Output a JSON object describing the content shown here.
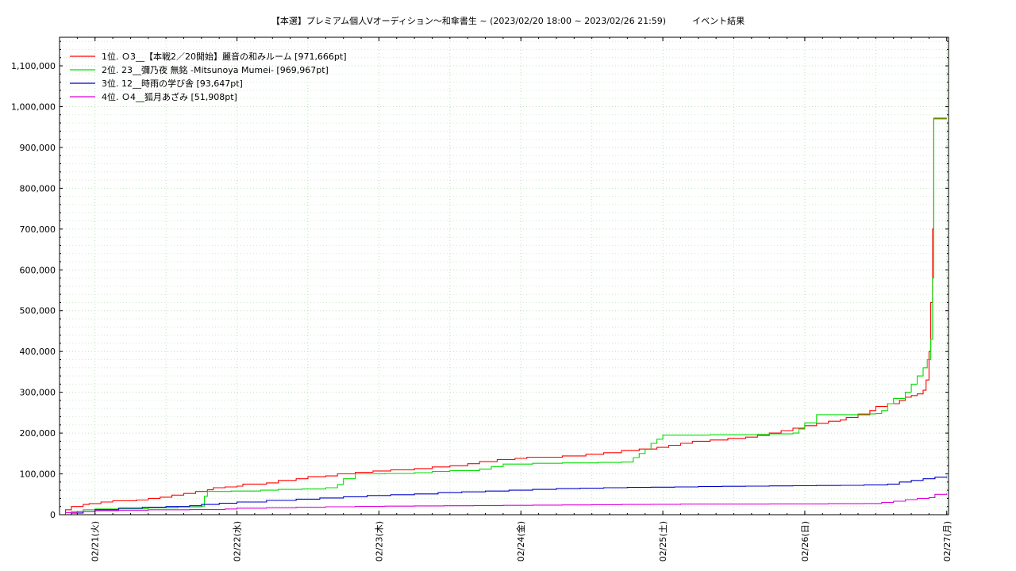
{
  "chart_data": {
    "type": "line",
    "title": "【本選】プレミアム個人Vオーディション〜和傘書生 ~ (2023/02/20 18:00 ~ 2023/02/26 21:59)　　　イベント結果",
    "xlabel": "",
    "ylabel": "",
    "x_ticks": [
      "02/21(火)",
      "02/22(水)",
      "02/23(木)",
      "02/24(金)",
      "02/25(土)",
      "02/26(日)",
      "02/27(月)"
    ],
    "x_tick_hours": [
      6,
      30,
      54,
      78,
      102,
      126,
      150
    ],
    "xlim_hours": [
      0,
      150.3
    ],
    "ylim": [
      0,
      1170000
    ],
    "y_ticks": [
      0,
      100000,
      200000,
      300000,
      400000,
      500000,
      600000,
      700000,
      800000,
      900000,
      1000000,
      1100000
    ],
    "y_tick_labels": [
      "0",
      "100,000",
      "200,000",
      "300,000",
      "400,000",
      "500,000",
      "600,000",
      "700,000",
      "800,000",
      "900,000",
      "1,000,000",
      "1,100,000"
    ],
    "grid": true,
    "legend_position": "top-left",
    "x_unit": "hours since 2023/02/20 18:00",
    "series": [
      {
        "name": "1位. Ｏ3__【本戦2／20開始】麗音の和みルーム [971,666pt]",
        "color": "#ff0000",
        "points": [
          [
            0,
            0
          ],
          [
            1,
            12000
          ],
          [
            2,
            20000
          ],
          [
            4,
            25000
          ],
          [
            5,
            27000
          ],
          [
            7,
            31000
          ],
          [
            9,
            34000
          ],
          [
            13,
            36000
          ],
          [
            15,
            40000
          ],
          [
            17,
            43000
          ],
          [
            19,
            48000
          ],
          [
            21,
            52000
          ],
          [
            23,
            57000
          ],
          [
            25,
            61000
          ],
          [
            26,
            66000
          ],
          [
            28,
            68000
          ],
          [
            30,
            70000
          ],
          [
            31,
            75000
          ],
          [
            35,
            78000
          ],
          [
            37,
            84000
          ],
          [
            40,
            88000
          ],
          [
            42,
            93000
          ],
          [
            45,
            95000
          ],
          [
            47,
            100000
          ],
          [
            50,
            104000
          ],
          [
            53,
            107000
          ],
          [
            56,
            110000
          ],
          [
            60,
            113000
          ],
          [
            63,
            117000
          ],
          [
            66,
            120000
          ],
          [
            69,
            125000
          ],
          [
            71,
            130000
          ],
          [
            74,
            135000
          ],
          [
            77,
            138000
          ],
          [
            79,
            141000
          ],
          [
            85,
            144000
          ],
          [
            89,
            148000
          ],
          [
            92,
            152000
          ],
          [
            95,
            157000
          ],
          [
            98,
            161000
          ],
          [
            101,
            165000
          ],
          [
            103,
            170000
          ],
          [
            105,
            175000
          ],
          [
            107,
            180000
          ],
          [
            110,
            183000
          ],
          [
            113,
            187000
          ],
          [
            116,
            190000
          ],
          [
            118,
            194000
          ],
          [
            120,
            200000
          ],
          [
            122,
            206000
          ],
          [
            124,
            212000
          ],
          [
            126,
            218000
          ],
          [
            128,
            224000
          ],
          [
            130,
            229000
          ],
          [
            132,
            232000
          ],
          [
            133,
            238000
          ],
          [
            135,
            245000
          ],
          [
            137,
            255000
          ],
          [
            138,
            265000
          ],
          [
            140,
            272000
          ],
          [
            142,
            280000
          ],
          [
            143,
            288000
          ],
          [
            144,
            292000
          ],
          [
            145,
            296000
          ],
          [
            146,
            305000
          ],
          [
            146.5,
            330000
          ],
          [
            147,
            400000
          ],
          [
            147.3,
            520000
          ],
          [
            147.6,
            700000
          ],
          [
            147.8,
            971666
          ],
          [
            150,
            971666
          ]
        ]
      },
      {
        "name": "2位. 23__彌乃夜 無銘 -Mitsunoya Mumei- [969,967pt]",
        "color": "#00dd00",
        "points": [
          [
            0,
            0
          ],
          [
            2,
            8000
          ],
          [
            4,
            12000
          ],
          [
            6,
            14000
          ],
          [
            10,
            15000
          ],
          [
            15,
            17000
          ],
          [
            20,
            19000
          ],
          [
            24,
            21000
          ],
          [
            24.5,
            45000
          ],
          [
            25,
            57000
          ],
          [
            29,
            58000
          ],
          [
            34,
            60000
          ],
          [
            37,
            62000
          ],
          [
            41,
            63000
          ],
          [
            45,
            66000
          ],
          [
            47,
            74000
          ],
          [
            48,
            88000
          ],
          [
            50,
            100000
          ],
          [
            55,
            101000
          ],
          [
            60,
            103000
          ],
          [
            63,
            106000
          ],
          [
            66,
            108000
          ],
          [
            71,
            112000
          ],
          [
            73,
            118000
          ],
          [
            75,
            124000
          ],
          [
            80,
            126000
          ],
          [
            85,
            127000
          ],
          [
            91,
            128000
          ],
          [
            95,
            129000
          ],
          [
            97,
            140000
          ],
          [
            98,
            150000
          ],
          [
            99,
            160000
          ],
          [
            100,
            175000
          ],
          [
            101,
            185000
          ],
          [
            102,
            195000
          ],
          [
            110,
            196000
          ],
          [
            118,
            197000
          ],
          [
            120,
            198000
          ],
          [
            124,
            200000
          ],
          [
            125,
            210000
          ],
          [
            126,
            225000
          ],
          [
            128,
            245000
          ],
          [
            135,
            247000
          ],
          [
            138,
            248000
          ],
          [
            139,
            255000
          ],
          [
            140,
            272000
          ],
          [
            141,
            285000
          ],
          [
            143,
            300000
          ],
          [
            144,
            320000
          ],
          [
            145,
            340000
          ],
          [
            146,
            360000
          ],
          [
            146.7,
            380000
          ],
          [
            147.3,
            430000
          ],
          [
            147.6,
            580000
          ],
          [
            147.8,
            969967
          ],
          [
            150,
            969967
          ]
        ]
      },
      {
        "name": "3位. 12__時雨の学び舎 [93,647pt]",
        "color": "#0000cc",
        "points": [
          [
            0,
            0
          ],
          [
            2,
            4000
          ],
          [
            4,
            8000
          ],
          [
            6,
            12000
          ],
          [
            10,
            16000
          ],
          [
            14,
            18000
          ],
          [
            18,
            20000
          ],
          [
            22,
            22000
          ],
          [
            24,
            25000
          ],
          [
            27,
            28000
          ],
          [
            30,
            31000
          ],
          [
            35,
            35000
          ],
          [
            40,
            38000
          ],
          [
            44,
            41000
          ],
          [
            48,
            44000
          ],
          [
            52,
            47000
          ],
          [
            56,
            49000
          ],
          [
            60,
            51000
          ],
          [
            64,
            54000
          ],
          [
            68,
            56000
          ],
          [
            72,
            58000
          ],
          [
            76,
            60000
          ],
          [
            80,
            62000
          ],
          [
            84,
            64000
          ],
          [
            88,
            65000
          ],
          [
            92,
            66000
          ],
          [
            96,
            67000
          ],
          [
            100,
            67500
          ],
          [
            104,
            68000
          ],
          [
            108,
            69000
          ],
          [
            112,
            69500
          ],
          [
            116,
            70000
          ],
          [
            120,
            70500
          ],
          [
            124,
            71000
          ],
          [
            128,
            71500
          ],
          [
            132,
            72000
          ],
          [
            136,
            73000
          ],
          [
            140,
            75000
          ],
          [
            142,
            80000
          ],
          [
            144,
            84000
          ],
          [
            146,
            88000
          ],
          [
            148,
            92000
          ],
          [
            150,
            93647
          ]
        ]
      },
      {
        "name": "4位. Ｏ4__狐月あざみ [51,908pt]",
        "color": "#dd00dd",
        "points": [
          [
            0,
            0
          ],
          [
            1,
            5000
          ],
          [
            3,
            8000
          ],
          [
            6,
            10000
          ],
          [
            10,
            11000
          ],
          [
            15,
            12000
          ],
          [
            22,
            12500
          ],
          [
            28,
            14000
          ],
          [
            30,
            16000
          ],
          [
            35,
            17000
          ],
          [
            40,
            18000
          ],
          [
            45,
            19500
          ],
          [
            50,
            20500
          ],
          [
            55,
            21000
          ],
          [
            60,
            21500
          ],
          [
            65,
            22000
          ],
          [
            70,
            22500
          ],
          [
            75,
            23000
          ],
          [
            80,
            23500
          ],
          [
            85,
            24000
          ],
          [
            90,
            24500
          ],
          [
            95,
            25000
          ],
          [
            100,
            25500
          ],
          [
            105,
            26000
          ],
          [
            110,
            26000
          ],
          [
            120,
            26500
          ],
          [
            130,
            27000
          ],
          [
            136,
            27500
          ],
          [
            139,
            30000
          ],
          [
            141,
            33000
          ],
          [
            143,
            37000
          ],
          [
            145,
            40000
          ],
          [
            147,
            42000
          ],
          [
            148,
            50000
          ],
          [
            150,
            51908
          ]
        ]
      }
    ]
  }
}
